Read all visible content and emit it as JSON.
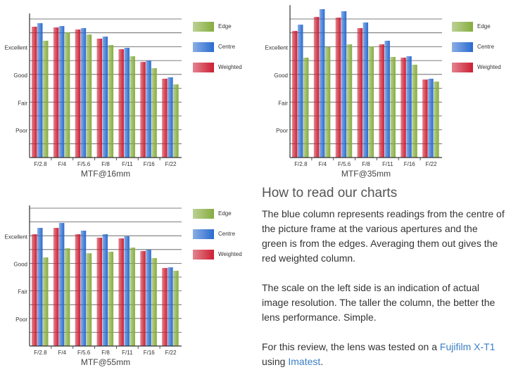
{
  "chart_data": [
    {
      "type": "bar",
      "xlabel": "MTF@16mm",
      "categories": [
        "F/2.8",
        "F/4",
        "F/5.6",
        "F/8",
        "F/11",
        "F/16",
        "F/22"
      ],
      "series": [
        {
          "name": "Edge",
          "color": "#86ac3e",
          "values": [
            8.43,
            9.04,
            8.88,
            8.12,
            7.31,
            6.45,
            5.28
          ]
        },
        {
          "name": "Centre",
          "color": "#2a6bd0",
          "values": [
            9.7,
            9.49,
            9.34,
            8.73,
            7.92,
            7.0,
            5.79
          ]
        },
        {
          "name": "Weighted",
          "color": "#cc1f33",
          "values": [
            9.44,
            9.39,
            9.24,
            8.58,
            7.82,
            6.9,
            5.69
          ]
        }
      ],
      "ylim": [
        0,
        10.4
      ],
      "yticks": [
        {
          "value": 1,
          "label": null
        },
        {
          "value": 2,
          "label": "Poor"
        },
        {
          "value": 3,
          "label": null
        },
        {
          "value": 4,
          "label": "Fair"
        },
        {
          "value": 5,
          "label": null
        },
        {
          "value": 6,
          "label": "Good"
        },
        {
          "value": 7,
          "label": null
        },
        {
          "value": 8,
          "label": "Excellent"
        },
        {
          "value": 9,
          "label": null
        },
        {
          "value": 10,
          "label": null
        }
      ],
      "grid": true
    },
    {
      "type": "bar",
      "xlabel": "MTF@35mm",
      "categories": [
        "F/2.8",
        "F/4",
        "F/5.6",
        "F/8",
        "F/11",
        "F/16",
        "F/22"
      ],
      "series": [
        {
          "name": "Edge",
          "color": "#86ac3e",
          "values": [
            7.21,
            7.97,
            8.17,
            8.02,
            7.26,
            6.7,
            5.48
          ]
        },
        {
          "name": "Centre",
          "color": "#2a6bd0",
          "values": [
            9.59,
            10.71,
            10.56,
            9.75,
            8.43,
            7.31,
            5.69
          ]
        },
        {
          "name": "Weighted",
          "color": "#cc1f33",
          "values": [
            9.14,
            10.15,
            10.1,
            9.34,
            8.17,
            7.21,
            5.63
          ]
        }
      ],
      "ylim": [
        0,
        11
      ],
      "yticks": [
        {
          "value": 1,
          "label": null
        },
        {
          "value": 2,
          "label": "Poor"
        },
        {
          "value": 3,
          "label": null
        },
        {
          "value": 4,
          "label": "Fair"
        },
        {
          "value": 5,
          "label": null
        },
        {
          "value": 6,
          "label": "Good"
        },
        {
          "value": 7,
          "label": null
        },
        {
          "value": 8,
          "label": "Excellent"
        },
        {
          "value": 9,
          "label": null
        },
        {
          "value": 10,
          "label": null
        }
      ],
      "grid": true
    },
    {
      "type": "bar",
      "xlabel": "MTF@55mm",
      "categories": [
        "F/2.8",
        "F/4",
        "F/5.6",
        "F/8",
        "F/11",
        "F/16",
        "F/22"
      ],
      "series": [
        {
          "name": "Edge",
          "color": "#86ac3e",
          "values": [
            6.43,
            7.09,
            6.73,
            6.84,
            7.14,
            6.38,
            5.46
          ]
        },
        {
          "name": "Centre",
          "color": "#2a6bd0",
          "values": [
            8.57,
            8.93,
            8.37,
            8.11,
            7.96,
            6.99,
            5.71
          ]
        },
        {
          "name": "Weighted",
          "color": "#cc1f33",
          "values": [
            8.11,
            8.57,
            8.11,
            7.86,
            7.81,
            6.89,
            5.66
          ]
        }
      ],
      "ylim": [
        0,
        10.2
      ],
      "yticks": [
        {
          "value": 1,
          "label": null
        },
        {
          "value": 2,
          "label": "Poor"
        },
        {
          "value": 3,
          "label": null
        },
        {
          "value": 4,
          "label": "Fair"
        },
        {
          "value": 5,
          "label": null
        },
        {
          "value": 6,
          "label": "Good"
        },
        {
          "value": 7,
          "label": null
        },
        {
          "value": 8,
          "label": "Excellent"
        },
        {
          "value": 9,
          "label": null
        },
        {
          "value": 10,
          "label": null
        }
      ],
      "grid": true
    }
  ],
  "article": {
    "heading": "How to read our charts",
    "paragraphs": [
      "The blue column represents readings from the centre of the picture frame at the various apertures and the green is from the edges. Averaging them out gives the red weighted column.",
      "The scale on the left side is an indication of actual image resolution. The taller the column, the better the lens performance. Simple."
    ],
    "closing": {
      "before": "For this review, the lens was tested on a ",
      "link1": "Fujifilm X-T1",
      "middle": " using ",
      "link2": "Imatest",
      "after": "."
    }
  }
}
